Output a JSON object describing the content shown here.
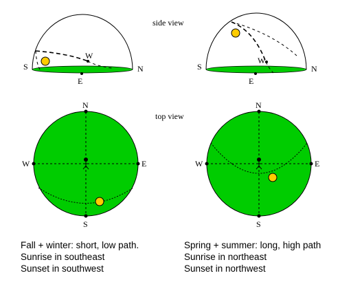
{
  "headings": {
    "side_view": "side view",
    "top_view": "top view"
  },
  "compass": {
    "north": "N",
    "south": "S",
    "east": "E",
    "west": "W"
  },
  "captions": {
    "fall_winter": [
      "Fall + winter: short, low path.",
      "Sunrise in southeast",
      "Sunset in southwest"
    ],
    "spring_summer": [
      "Spring + summer: long, high path",
      "Sunrise in northeast",
      "Sunset in northwest"
    ]
  },
  "colors": {
    "ground": "#00cc00",
    "sun": "#ffcc00",
    "outline": "#000000"
  }
}
